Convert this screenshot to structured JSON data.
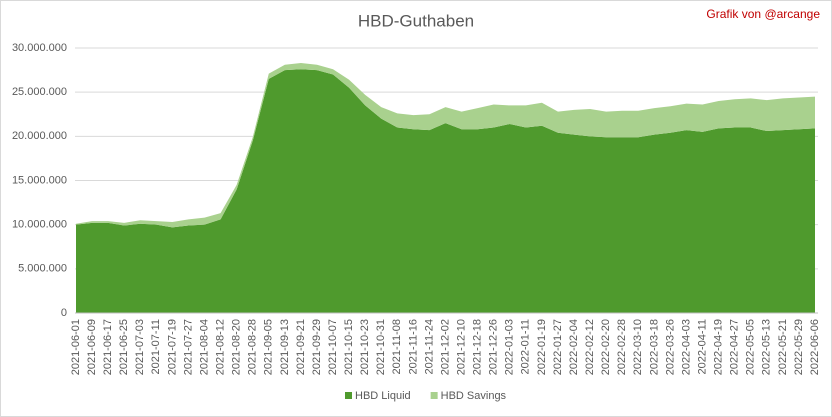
{
  "chart_data": {
    "type": "stacked_area",
    "title": "HBD-Guthaben",
    "annotation": "Grafik von @arcange",
    "categories": [
      "2021-06-01",
      "2021-06-09",
      "2021-06-17",
      "2021-06-25",
      "2021-07-03",
      "2021-07-11",
      "2021-07-19",
      "2021-07-27",
      "2021-08-04",
      "2021-08-12",
      "2021-08-20",
      "2021-08-28",
      "2021-09-05",
      "2021-09-13",
      "2021-09-21",
      "2021-09-29",
      "2021-10-07",
      "2021-10-15",
      "2021-10-23",
      "2021-10-31",
      "2021-11-08",
      "2021-11-16",
      "2021-11-24",
      "2021-12-02",
      "2021-12-10",
      "2021-12-18",
      "2021-12-26",
      "2022-01-03",
      "2022-01-11",
      "2022-01-19",
      "2022-01-27",
      "2022-02-04",
      "2022-02-12",
      "2022-02-20",
      "2022-02-28",
      "2022-03-10",
      "2022-03-18",
      "2022-03-26",
      "2022-04-03",
      "2022-04-11",
      "2022-04-19",
      "2022-04-27",
      "2022-05-05",
      "2022-05-13",
      "2022-05-21",
      "2022-05-29",
      "2022-06-06"
    ],
    "series": [
      {
        "name": "HBD Liquid",
        "color": "#4f9a2d",
        "values": [
          10000000,
          10200000,
          10200000,
          9900000,
          10100000,
          10000000,
          9700000,
          9900000,
          10000000,
          10600000,
          14000000,
          19500000,
          26500000,
          27500000,
          27600000,
          27500000,
          27000000,
          25500000,
          23500000,
          22000000,
          21000000,
          20800000,
          20700000,
          21500000,
          20800000,
          20800000,
          21000000,
          21400000,
          21000000,
          21200000,
          20400000,
          20200000,
          20000000,
          19900000,
          19900000,
          19900000,
          20200000,
          20400000,
          20700000,
          20500000,
          20900000,
          21000000,
          21000000,
          20600000,
          20700000,
          20800000,
          20900000
        ]
      },
      {
        "name": "HBD Savings",
        "color": "#a9d18e",
        "values": [
          100000,
          200000,
          200000,
          300000,
          400000,
          400000,
          600000,
          700000,
          800000,
          700000,
          500000,
          400000,
          600000,
          600000,
          700000,
          600000,
          600000,
          900000,
          1200000,
          1300000,
          1600000,
          1600000,
          1800000,
          1800000,
          2000000,
          2400000,
          2600000,
          2100000,
          2500000,
          2600000,
          2400000,
          2800000,
          3100000,
          2900000,
          3000000,
          3000000,
          3000000,
          3000000,
          3000000,
          3100000,
          3100000,
          3200000,
          3300000,
          3500000,
          3600000,
          3600000,
          3600000
        ]
      }
    ],
    "ylim": [
      0,
      30000000
    ],
    "yticks": [
      0,
      {
        "value": 5000000,
        "label": "5.000.000"
      },
      {
        "value": 10000000,
        "label": "10.000.000"
      },
      {
        "value": 15000000,
        "label": "15.000.000"
      },
      {
        "value": 20000000,
        "label": "20.000.000"
      },
      {
        "value": 25000000,
        "label": "25.000.000"
      },
      {
        "value": 30000000,
        "label": "30.000.000"
      }
    ],
    "grid": true,
    "legend": "bottom"
  }
}
